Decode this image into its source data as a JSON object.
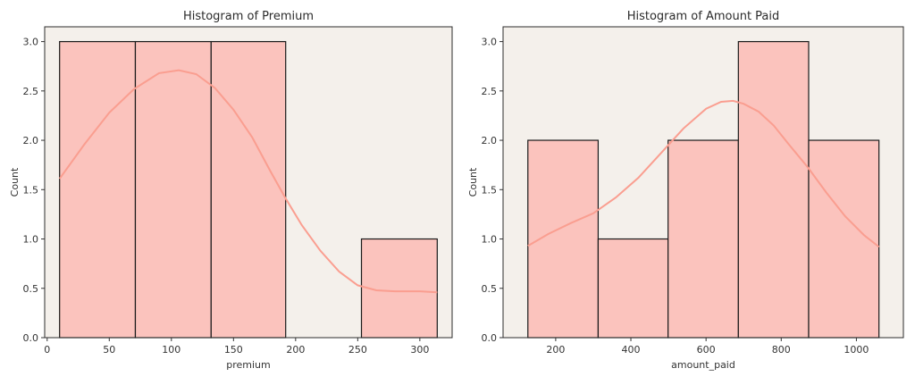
{
  "chart_data": [
    {
      "type": "bar",
      "title": "Histogram of Premium",
      "xlabel": "premium",
      "ylabel": "Count",
      "xlim": [
        -2,
        326
      ],
      "ylim": [
        0,
        3.15
      ],
      "xticks": [
        0,
        50,
        100,
        150,
        200,
        250,
        300
      ],
      "yticks": [
        0.0,
        0.5,
        1.0,
        1.5,
        2.0,
        2.5,
        3.0
      ],
      "bins": [
        {
          "x0": 10,
          "x1": 71,
          "count": 3
        },
        {
          "x0": 71,
          "x1": 132,
          "count": 3
        },
        {
          "x0": 132,
          "x1": 192,
          "count": 3
        },
        {
          "x0": 192,
          "x1": 253,
          "count": 0
        },
        {
          "x0": 253,
          "x1": 314,
          "count": 1
        }
      ],
      "kde": {
        "x": [
          10,
          30,
          50,
          70,
          90,
          106,
          120,
          135,
          150,
          165,
          180,
          192,
          205,
          220,
          235,
          250,
          265,
          280,
          300,
          314
        ],
        "y": [
          1.61,
          1.96,
          2.28,
          2.52,
          2.68,
          2.71,
          2.67,
          2.53,
          2.31,
          2.03,
          1.68,
          1.41,
          1.14,
          0.88,
          0.67,
          0.53,
          0.48,
          0.47,
          0.47,
          0.46
        ]
      },
      "color": "#fa8072"
    },
    {
      "type": "bar",
      "title": "Histogram of Amount Paid",
      "xlabel": "amount_paid",
      "ylabel": "Count",
      "xlim": [
        60,
        1125
      ],
      "ylim": [
        0,
        3.15
      ],
      "xticks": [
        200,
        400,
        600,
        800,
        1000
      ],
      "yticks": [
        0.0,
        0.5,
        1.0,
        1.5,
        2.0,
        2.5,
        3.0
      ],
      "bins": [
        {
          "x0": 126,
          "x1": 313,
          "count": 2
        },
        {
          "x0": 313,
          "x1": 499,
          "count": 1
        },
        {
          "x0": 499,
          "x1": 686,
          "count": 2
        },
        {
          "x0": 686,
          "x1": 873,
          "count": 3
        },
        {
          "x0": 873,
          "x1": 1060,
          "count": 2
        }
      ],
      "kde": {
        "x": [
          126,
          180,
          240,
          300,
          360,
          420,
          480,
          540,
          600,
          640,
          672,
          700,
          740,
          780,
          820,
          870,
          920,
          970,
          1020,
          1060
        ],
        "y": [
          0.93,
          1.05,
          1.16,
          1.26,
          1.42,
          1.62,
          1.87,
          2.12,
          2.32,
          2.39,
          2.4,
          2.37,
          2.29,
          2.15,
          1.96,
          1.73,
          1.47,
          1.23,
          1.04,
          0.92
        ]
      },
      "color": "#fa8072"
    }
  ]
}
